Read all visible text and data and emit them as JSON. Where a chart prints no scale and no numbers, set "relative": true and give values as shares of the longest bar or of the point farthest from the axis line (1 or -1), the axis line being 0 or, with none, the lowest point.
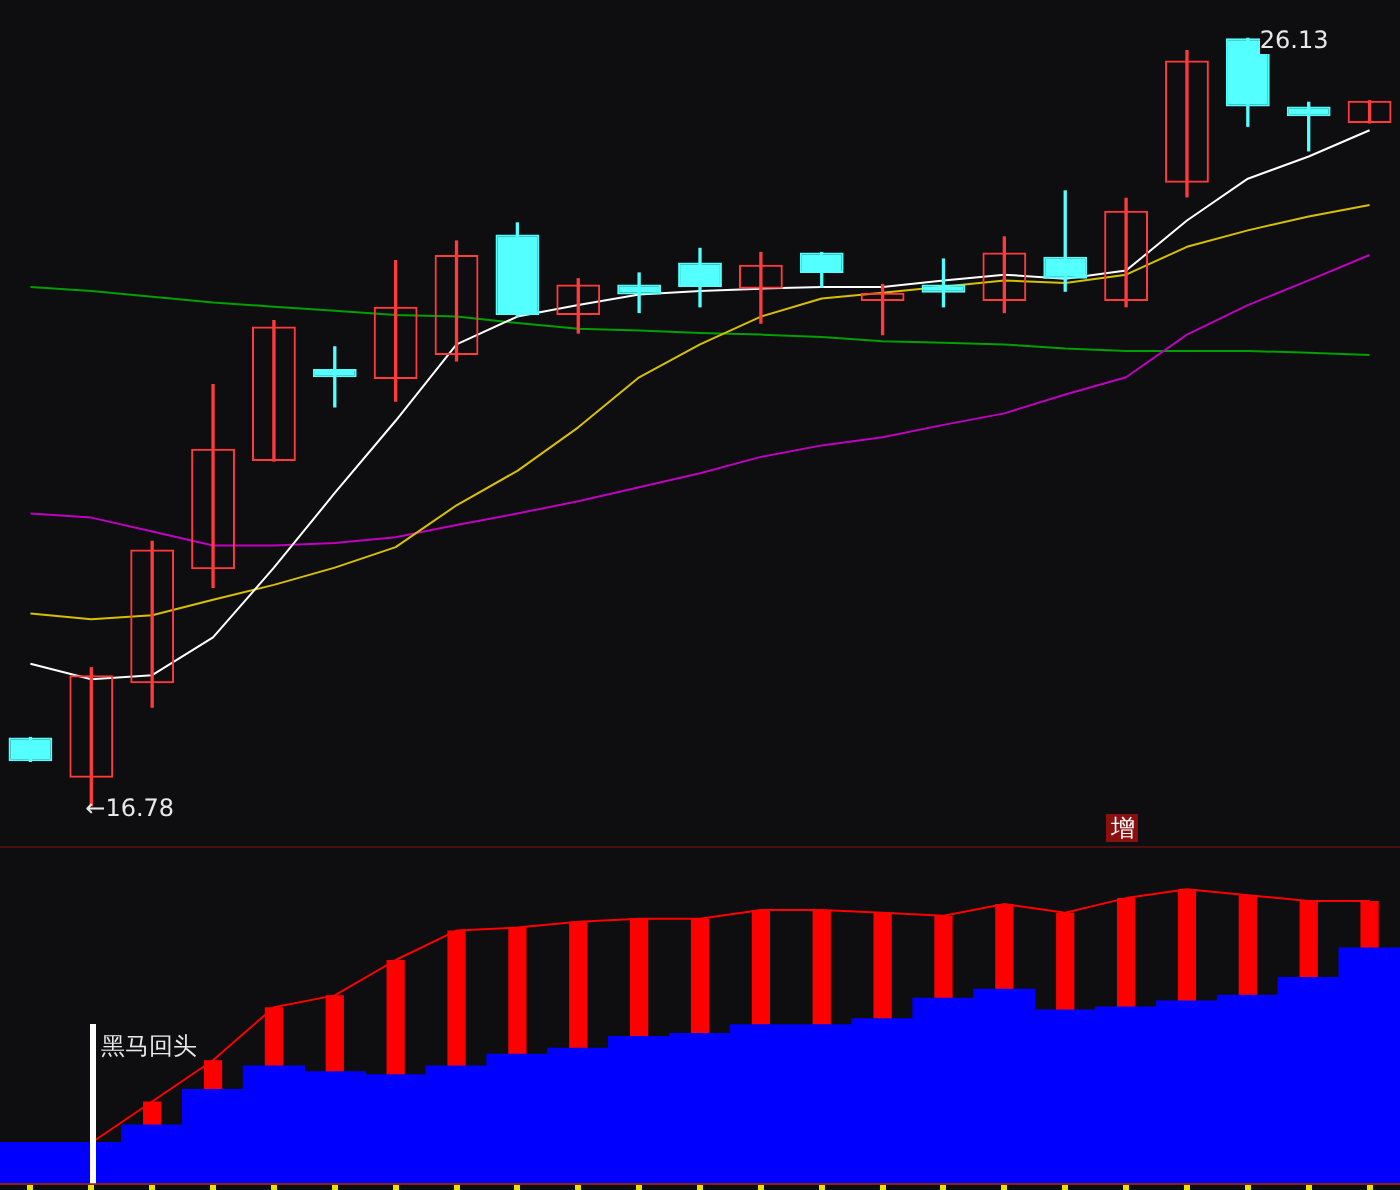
{
  "chart_data": [
    {
      "type": "candlestick",
      "categories": [
        null,
        null,
        null,
        null,
        null,
        null,
        null,
        null,
        null,
        null,
        null,
        null,
        null,
        null,
        null,
        null,
        null,
        null,
        null,
        null,
        null,
        null,
        null
      ],
      "ohlc": [
        [
          17.61,
          17.61,
          17.32,
          17.32
        ],
        [
          17.12,
          18.46,
          16.78,
          18.37
        ],
        [
          18.27,
          20.0,
          17.98,
          19.9
        ],
        [
          19.66,
          21.91,
          19.44,
          21.13
        ],
        [
          20.98,
          22.69,
          20.98,
          22.62
        ],
        [
          22.1,
          22.37,
          21.64,
          22.0
        ],
        [
          21.98,
          23.42,
          21.71,
          22.86
        ],
        [
          22.27,
          23.66,
          22.2,
          23.49
        ],
        [
          23.74,
          23.88,
          22.74,
          22.76
        ],
        [
          22.76,
          23.2,
          22.54,
          23.13
        ],
        [
          23.13,
          23.27,
          22.79,
          23.01
        ],
        [
          23.4,
          23.57,
          22.86,
          23.1
        ],
        [
          23.08,
          23.52,
          22.66,
          23.37
        ],
        [
          23.52,
          23.52,
          23.1,
          23.27
        ],
        [
          22.93,
          23.13,
          22.52,
          23.03
        ],
        [
          23.13,
          23.44,
          22.86,
          23.03
        ],
        [
          22.93,
          23.71,
          22.79,
          23.52
        ],
        [
          23.47,
          24.27,
          23.05,
          23.2
        ],
        [
          22.93,
          24.18,
          22.86,
          24.03
        ],
        [
          24.37,
          25.98,
          24.2,
          25.86
        ],
        [
          26.13,
          26.13,
          25.06,
          25.3
        ],
        [
          25.3,
          25.35,
          24.76,
          25.18
        ],
        [
          25.1,
          25.37,
          25.1,
          25.37
        ]
      ],
      "colors": [
        "#54ffff",
        "#ff3b3b",
        "#ff3b3b",
        "#ff3b3b",
        "#ff3b3b",
        "#54ffff",
        "#ff3b3b",
        "#ff3b3b",
        "#54ffff",
        "#ff3b3b",
        "#54ffff",
        "#54ffff",
        "#ff3b3b",
        "#54ffff",
        "#ff3b3b",
        "#54ffff",
        "#ff3b3b",
        "#54ffff",
        "#ff3b3b",
        "#ff3b3b",
        "#54ffff",
        "#54ffff",
        "#ff3b3b"
      ],
      "series": [
        {
          "type": "line",
          "color": "#ffffff",
          "values": [
            18.51,
            18.32,
            18.37,
            18.83,
            19.68,
            20.59,
            21.47,
            22.4,
            22.74,
            22.88,
            23.01,
            23.05,
            23.08,
            23.1,
            23.1,
            23.18,
            23.25,
            23.2,
            23.3,
            23.91,
            24.42,
            24.69,
            25.01
          ]
        },
        {
          "type": "line",
          "color": "#d8c000",
          "values": [
            19.12,
            19.05,
            19.1,
            19.29,
            19.47,
            19.68,
            19.93,
            20.44,
            20.86,
            21.39,
            22.0,
            22.4,
            22.74,
            22.96,
            23.03,
            null,
            23.18,
            23.15,
            23.25,
            23.59,
            23.79,
            23.96,
            24.1
          ]
        },
        {
          "type": "line",
          "color": "#c000c0",
          "values": [
            20.34,
            20.29,
            20.12,
            19.95,
            19.95,
            19.98,
            20.05,
            20.2,
            20.34,
            20.49,
            20.66,
            20.83,
            21.03,
            21.17,
            21.27,
            21.42,
            21.56,
            21.79,
            22.0,
            22.52,
            22.88,
            23.18,
            23.49
          ]
        },
        {
          "type": "line",
          "color": "#00a000",
          "values": [
            23.1,
            23.05,
            22.98,
            22.91,
            22.86,
            22.81,
            22.76,
            22.74,
            22.66,
            22.59,
            22.57,
            22.54,
            22.52,
            22.49,
            22.44,
            22.42,
            22.4,
            22.35,
            22.32,
            22.32,
            22.32,
            22.3,
            22.27
          ]
        }
      ],
      "legend": false,
      "annotations": [
        "26.13",
        "←16.78"
      ]
    },
    {
      "type": "bar",
      "relative": true,
      "stacked": true,
      "categories": [
        null,
        null,
        null,
        null,
        null,
        null,
        null,
        null,
        null,
        null,
        null,
        null,
        null,
        null,
        null,
        null,
        null,
        null,
        null,
        null,
        null,
        null,
        null
      ],
      "series": [
        {
          "color": "#0000ff",
          "values": [
            0.14,
            0.14,
            0.2,
            0.32,
            0.4,
            0.38,
            0.37,
            0.4,
            0.44,
            0.46,
            0.5,
            0.51,
            0.54,
            0.54,
            0.56,
            0.63,
            0.66,
            0.59,
            0.6,
            0.62,
            0.64,
            0.7,
            0.8
          ]
        },
        {
          "color": "#ff0000",
          "values": [
            null,
            null,
            0.08,
            0.1,
            0.2,
            0.26,
            0.39,
            0.46,
            0.43,
            0.43,
            0.4,
            0.39,
            0.39,
            0.39,
            0.36,
            0.28,
            0.29,
            0.33,
            0.37,
            0.38,
            0.34,
            0.26,
            0.16
          ]
        }
      ],
      "legend": false
    },
    {
      "type": "line",
      "relative": true,
      "categories": [
        null,
        null,
        null,
        null,
        null,
        null,
        null,
        null,
        null,
        null,
        null,
        null,
        null,
        null,
        null,
        null,
        null,
        null,
        null,
        null,
        null,
        null,
        null
      ],
      "series": [
        {
          "color": "#ff0000",
          "values": [
            null,
            0.14,
            0.28,
            0.42,
            0.6,
            0.64,
            0.76,
            0.86,
            0.87,
            0.89,
            0.9,
            0.9,
            0.93,
            0.93,
            0.92,
            0.91,
            0.95,
            0.92,
            0.97,
            1,
            0.98,
            0.96,
            0.96
          ]
        }
      ],
      "legend": false,
      "annotations": [
        "黑马回头",
        "增"
      ]
    }
  ]
}
